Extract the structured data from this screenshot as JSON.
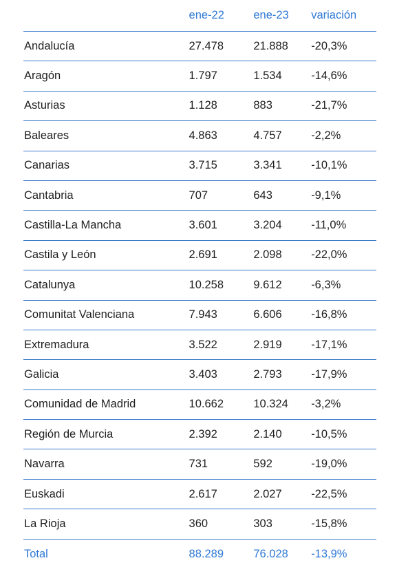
{
  "header": {
    "col_a": "ene-22",
    "col_b": "ene-23",
    "col_v": "variación"
  },
  "rows": [
    {
      "region": "Andalucía",
      "a": "27.478",
      "b": "21.888",
      "v": "-20,3%"
    },
    {
      "region": "Aragón",
      "a": "1.797",
      "b": "1.534",
      "v": "-14,6%"
    },
    {
      "region": "Asturias",
      "a": "1.128",
      "b": "883",
      "v": "-21,7%"
    },
    {
      "region": "Baleares",
      "a": "4.863",
      "b": "4.757",
      "v": "-2,2%"
    },
    {
      "region": "Canarias",
      "a": "3.715",
      "b": "3.341",
      "v": "-10,1%"
    },
    {
      "region": "Cantabria",
      "a": "707",
      "b": "643",
      "v": "-9,1%"
    },
    {
      "region": "Castilla-La Mancha",
      "a": "3.601",
      "b": "3.204",
      "v": "-11,0%"
    },
    {
      "region": "Castila y León",
      "a": "2.691",
      "b": "2.098",
      "v": "-22,0%"
    },
    {
      "region": "Catalunya",
      "a": "10.258",
      "b": "9.612",
      "v": "-6,3%"
    },
    {
      "region": "Comunitat Valenciana",
      "a": "7.943",
      "b": "6.606",
      "v": "-16,8%"
    },
    {
      "region": "Extremadura",
      "a": "3.522",
      "b": "2.919",
      "v": "-17,1%"
    },
    {
      "region": "Galicia",
      "a": "3.403",
      "b": "2.793",
      "v": "-17,9%"
    },
    {
      "region": "Comunidad de Madrid",
      "a": "10.662",
      "b": "10.324",
      "v": "-3,2%"
    },
    {
      "region": "Región de Murcia",
      "a": "2.392",
      "b": "2.140",
      "v": "-10,5%"
    },
    {
      "region": "Navarra",
      "a": "731",
      "b": "592",
      "v": "-19,0%"
    },
    {
      "region": "Euskadi",
      "a": "2.617",
      "b": "2.027",
      "v": "-22,5%"
    },
    {
      "region": "La Rioja",
      "a": "360",
      "b": "303",
      "v": "-15,8%"
    }
  ],
  "total": {
    "region": "Total",
    "a": "88.289",
    "b": "76.028",
    "v": "-13,9%"
  },
  "colors": {
    "accent": "#2f7ad6",
    "rule": "#3a79c9",
    "text": "#1f1f1f"
  }
}
